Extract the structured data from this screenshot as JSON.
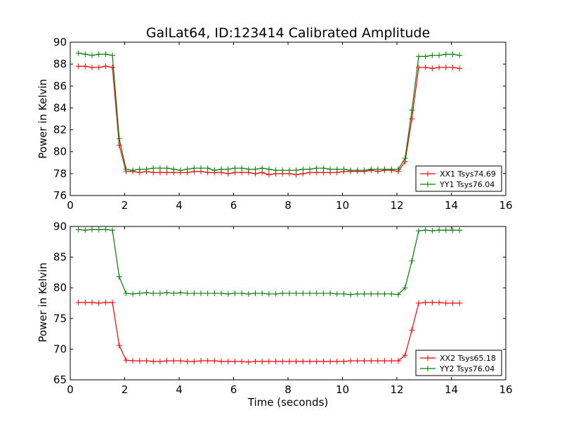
{
  "chart_data": [
    {
      "type": "line",
      "title": "GalLat64, ID:123414 Calibrated Amplitude",
      "xlabel": "",
      "ylabel": "Power in Kelvin",
      "xlim": [
        0,
        16
      ],
      "ylim": [
        76,
        90
      ],
      "xticks": [
        0,
        2,
        4,
        6,
        8,
        10,
        12,
        14,
        16
      ],
      "yticks": [
        76,
        78,
        80,
        82,
        84,
        86,
        88,
        90
      ],
      "grid": false,
      "legend_position": "lower-right",
      "x": [
        0.3,
        0.55,
        0.8,
        1.05,
        1.3,
        1.55,
        1.8,
        2.05,
        2.3,
        2.55,
        2.8,
        3.05,
        3.3,
        3.55,
        3.8,
        4.05,
        4.3,
        4.55,
        4.8,
        5.05,
        5.3,
        5.55,
        5.8,
        6.05,
        6.3,
        6.55,
        6.8,
        7.05,
        7.3,
        7.55,
        7.8,
        8.05,
        8.3,
        8.55,
        8.8,
        9.05,
        9.3,
        9.55,
        9.8,
        10.05,
        10.3,
        10.55,
        10.8,
        11.05,
        11.3,
        11.55,
        11.8,
        12.05,
        12.3,
        12.55,
        12.8,
        13.05,
        13.3,
        13.55,
        13.8,
        14.05,
        14.3
      ],
      "series": [
        {
          "name": "XX1 Tsys74.69",
          "color": "#ff0000",
          "values": [
            87.8,
            87.8,
            87.7,
            87.7,
            87.8,
            87.7,
            80.6,
            78.2,
            78.2,
            78.1,
            78.2,
            78.1,
            78.1,
            78.1,
            78.1,
            78.1,
            78.1,
            78.2,
            78.2,
            78.1,
            78.1,
            78.1,
            78.0,
            78.1,
            78.1,
            78.1,
            78.0,
            78.1,
            77.9,
            78.0,
            78.0,
            78.0,
            77.9,
            78.0,
            78.1,
            78.1,
            78.1,
            78.1,
            78.1,
            78.2,
            78.2,
            78.2,
            78.2,
            78.3,
            78.2,
            78.3,
            78.3,
            78.2,
            79.1,
            83.0,
            87.7,
            87.7,
            87.6,
            87.7,
            87.7,
            87.7,
            87.6
          ]
        },
        {
          "name": "YY1 Tsys76.04",
          "color": "#008000",
          "values": [
            89.0,
            88.9,
            88.8,
            88.9,
            88.9,
            88.8,
            81.2,
            78.4,
            78.3,
            78.4,
            78.4,
            78.5,
            78.5,
            78.5,
            78.4,
            78.3,
            78.4,
            78.5,
            78.5,
            78.5,
            78.3,
            78.4,
            78.4,
            78.5,
            78.5,
            78.4,
            78.4,
            78.5,
            78.4,
            78.3,
            78.3,
            78.3,
            78.3,
            78.4,
            78.4,
            78.5,
            78.5,
            78.4,
            78.4,
            78.4,
            78.3,
            78.3,
            78.3,
            78.4,
            78.4,
            78.4,
            78.4,
            78.4,
            79.4,
            83.8,
            88.7,
            88.7,
            88.8,
            88.8,
            88.9,
            88.9,
            88.8
          ]
        }
      ]
    },
    {
      "type": "line",
      "title": "",
      "xlabel": "Time (seconds)",
      "ylabel": "Power in Kelvin",
      "xlim": [
        0,
        16
      ],
      "ylim": [
        65,
        90
      ],
      "xticks": [
        0,
        2,
        4,
        6,
        8,
        10,
        12,
        14,
        16
      ],
      "yticks": [
        65,
        70,
        75,
        80,
        85,
        90
      ],
      "grid": false,
      "legend_position": "lower-right",
      "x": [
        0.3,
        0.55,
        0.8,
        1.05,
        1.3,
        1.55,
        1.8,
        2.05,
        2.3,
        2.55,
        2.8,
        3.05,
        3.3,
        3.55,
        3.8,
        4.05,
        4.3,
        4.55,
        4.8,
        5.05,
        5.3,
        5.55,
        5.8,
        6.05,
        6.3,
        6.55,
        6.8,
        7.05,
        7.3,
        7.55,
        7.8,
        8.05,
        8.3,
        8.55,
        8.8,
        9.05,
        9.3,
        9.55,
        9.8,
        10.05,
        10.3,
        10.55,
        10.8,
        11.05,
        11.3,
        11.55,
        11.8,
        12.05,
        12.3,
        12.55,
        12.8,
        13.05,
        13.3,
        13.55,
        13.8,
        14.05,
        14.3
      ],
      "series": [
        {
          "name": "XX2 Tsys65.18",
          "color": "#ff0000",
          "values": [
            77.6,
            77.6,
            77.6,
            77.5,
            77.6,
            77.6,
            70.6,
            68.2,
            68.1,
            68.1,
            68.1,
            68.0,
            68.0,
            68.1,
            68.1,
            68.1,
            68.0,
            68.0,
            68.1,
            68.1,
            68.1,
            68.0,
            68.0,
            68.0,
            68.0,
            67.9,
            68.0,
            68.0,
            68.0,
            68.0,
            68.0,
            68.0,
            68.0,
            68.0,
            68.0,
            68.0,
            68.0,
            68.0,
            68.0,
            68.0,
            68.1,
            68.1,
            68.1,
            68.1,
            68.1,
            68.1,
            68.1,
            68.1,
            69.0,
            73.1,
            77.5,
            77.6,
            77.6,
            77.6,
            77.5,
            77.5,
            77.5
          ]
        },
        {
          "name": "YY2 Tsys76.04",
          "color": "#008000",
          "values": [
            89.5,
            89.4,
            89.5,
            89.5,
            89.5,
            89.4,
            81.8,
            79.1,
            79.0,
            79.1,
            79.2,
            79.1,
            79.1,
            79.2,
            79.1,
            79.2,
            79.1,
            79.1,
            79.1,
            79.1,
            79.1,
            79.1,
            79.0,
            79.1,
            79.1,
            79.0,
            79.1,
            79.1,
            79.0,
            79.0,
            79.1,
            79.1,
            79.1,
            79.1,
            79.1,
            79.1,
            79.1,
            79.1,
            79.0,
            79.0,
            78.9,
            79.0,
            79.0,
            79.0,
            79.0,
            79.0,
            79.0,
            78.9,
            80.0,
            84.4,
            89.3,
            89.4,
            89.3,
            89.4,
            89.4,
            89.4,
            89.4
          ]
        }
      ]
    }
  ]
}
